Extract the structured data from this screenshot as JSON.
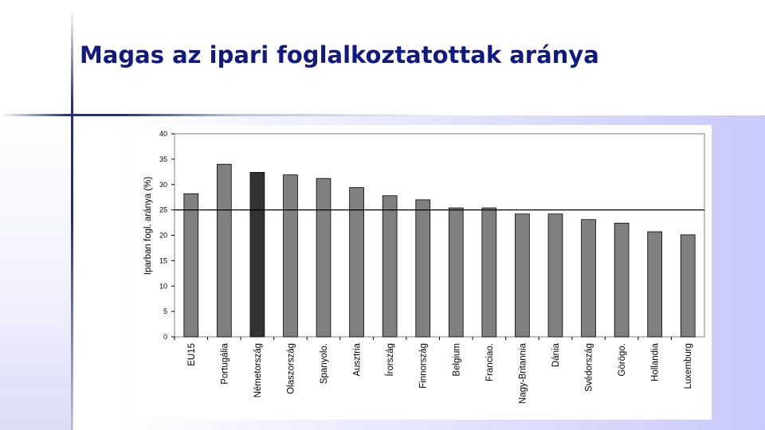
{
  "title": "Magas az ipari foglalkoztatottak aránya",
  "colors": {
    "title": "#101a80",
    "accent_line": "#1c2f8f",
    "bar": "#808080",
    "bar_highlight": "#333333"
  },
  "chart_data": {
    "type": "bar",
    "title": "",
    "xlabel": "",
    "ylabel": "Iparban fogl. aránya (%)",
    "ylim": [
      0,
      40
    ],
    "yticks": [
      0,
      5,
      10,
      15,
      20,
      25,
      30,
      35,
      40
    ],
    "grid": false,
    "legend": "none",
    "categories": [
      "EU15",
      "Portugália",
      "Németország",
      "Olaszország",
      "Spanyolo.",
      "Ausztria",
      "Írország",
      "Finnország",
      "Belgium",
      "Franciao.",
      "Nagy-Britannia",
      "Dánia",
      "Svédország",
      "Görögo.",
      "Hollandia",
      "Luxemburg"
    ],
    "values": [
      28.2,
      34,
      32.4,
      31.9,
      31.2,
      29.4,
      27.8,
      27,
      25.4,
      25.4,
      24.2,
      24.2,
      23.1,
      22.4,
      20.7,
      20.1
    ],
    "highlight": "Németország",
    "reference_line": 25
  }
}
